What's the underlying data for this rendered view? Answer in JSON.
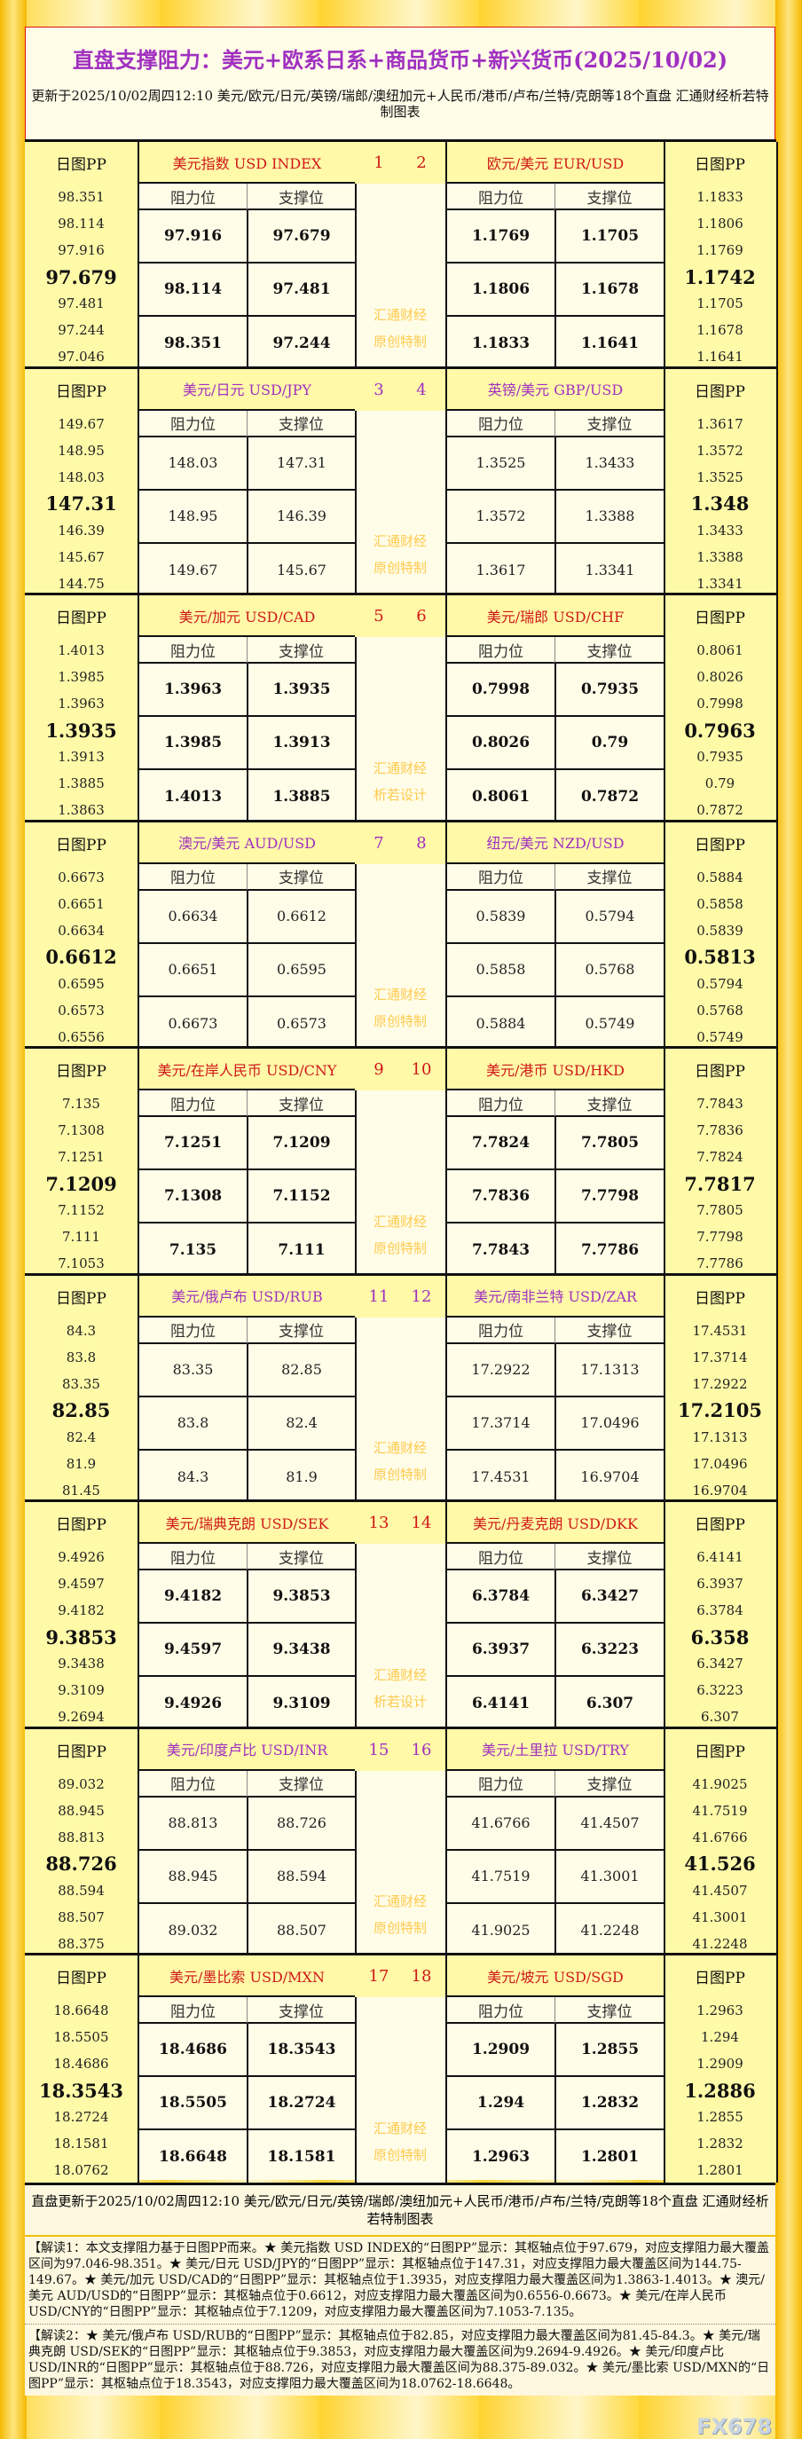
{
  "title": "直盘支撑阻力：美元+欧系日系+商品货币+新兴货币(2025/10/02)",
  "subtitle": "更新于2025/10/02周四12:10 美元/欧元/日元/英镑/瑞郎/澳纽加元+人民币/港币/卢布/兰特/克朗等18个直盘 汇通财经析若特制图表",
  "labels": {
    "pp": "日图PP",
    "resistance": "阻力位",
    "support": "支撑位"
  },
  "colors": {
    "red": "#d01818",
    "purple": "#a030c0",
    "watermark": "#ffc94d"
  },
  "blocks": [
    {
      "nums": [
        "1",
        "2"
      ],
      "color": "red",
      "bold": true,
      "watermark": [
        "汇通财经",
        "原创特制"
      ],
      "left": {
        "name": "美元指数 USD INDEX",
        "pp": [
          "98.351",
          "98.114",
          "97.916",
          "97.679",
          "97.481",
          "97.244",
          "97.046"
        ],
        "res": [
          "97.916",
          "98.114",
          "98.351"
        ],
        "sup": [
          "97.679",
          "97.481",
          "97.244"
        ]
      },
      "right": {
        "name": "欧元/美元 EUR/USD",
        "pp": [
          "1.1833",
          "1.1806",
          "1.1769",
          "1.1742",
          "1.1705",
          "1.1678",
          "1.1641"
        ],
        "res": [
          "1.1769",
          "1.1806",
          "1.1833"
        ],
        "sup": [
          "1.1705",
          "1.1678",
          "1.1641"
        ]
      }
    },
    {
      "nums": [
        "3",
        "4"
      ],
      "color": "purple",
      "bold": false,
      "watermark": [
        "汇通财经",
        "原创特制"
      ],
      "left": {
        "name": "美元/日元 USD/JPY",
        "pp": [
          "149.67",
          "148.95",
          "148.03",
          "147.31",
          "146.39",
          "145.67",
          "144.75"
        ],
        "res": [
          "148.03",
          "148.95",
          "149.67"
        ],
        "sup": [
          "147.31",
          "146.39",
          "145.67"
        ]
      },
      "right": {
        "name": "英镑/美元 GBP/USD",
        "pp": [
          "1.3617",
          "1.3572",
          "1.3525",
          "1.348",
          "1.3433",
          "1.3388",
          "1.3341"
        ],
        "res": [
          "1.3525",
          "1.3572",
          "1.3617"
        ],
        "sup": [
          "1.3433",
          "1.3388",
          "1.3341"
        ]
      }
    },
    {
      "nums": [
        "5",
        "6"
      ],
      "color": "red",
      "bold": true,
      "watermark": [
        "汇通财经",
        "析若设计"
      ],
      "left": {
        "name": "美元/加元 USD/CAD",
        "pp": [
          "1.4013",
          "1.3985",
          "1.3963",
          "1.3935",
          "1.3913",
          "1.3885",
          "1.3863"
        ],
        "res": [
          "1.3963",
          "1.3985",
          "1.4013"
        ],
        "sup": [
          "1.3935",
          "1.3913",
          "1.3885"
        ]
      },
      "right": {
        "name": "美元/瑞郎 USD/CHF",
        "pp": [
          "0.8061",
          "0.8026",
          "0.7998",
          "0.7963",
          "0.7935",
          "0.79",
          "0.7872"
        ],
        "res": [
          "0.7998",
          "0.8026",
          "0.8061"
        ],
        "sup": [
          "0.7935",
          "0.79",
          "0.7872"
        ]
      }
    },
    {
      "nums": [
        "7",
        "8"
      ],
      "color": "purple",
      "bold": false,
      "watermark": [
        "汇通财经",
        "原创特制"
      ],
      "left": {
        "name": "澳元/美元 AUD/USD",
        "pp": [
          "0.6673",
          "0.6651",
          "0.6634",
          "0.6612",
          "0.6595",
          "0.6573",
          "0.6556"
        ],
        "res": [
          "0.6634",
          "0.6651",
          "0.6673"
        ],
        "sup": [
          "0.6612",
          "0.6595",
          "0.6573"
        ]
      },
      "right": {
        "name": "纽元/美元 NZD/USD",
        "pp": [
          "0.5884",
          "0.5858",
          "0.5839",
          "0.5813",
          "0.5794",
          "0.5768",
          "0.5749"
        ],
        "res": [
          "0.5839",
          "0.5858",
          "0.5884"
        ],
        "sup": [
          "0.5794",
          "0.5768",
          "0.5749"
        ]
      }
    },
    {
      "nums": [
        "9",
        "10"
      ],
      "color": "red",
      "bold": true,
      "watermark": [
        "汇通财经",
        "原创特制"
      ],
      "left": {
        "name": "美元/在岸人民币 USD/CNY",
        "pp": [
          "7.135",
          "7.1308",
          "7.1251",
          "7.1209",
          "7.1152",
          "7.111",
          "7.1053"
        ],
        "res": [
          "7.1251",
          "7.1308",
          "7.135"
        ],
        "sup": [
          "7.1209",
          "7.1152",
          "7.111"
        ]
      },
      "right": {
        "name": "美元/港币 USD/HKD",
        "pp": [
          "7.7843",
          "7.7836",
          "7.7824",
          "7.7817",
          "7.7805",
          "7.7798",
          "7.7786"
        ],
        "res": [
          "7.7824",
          "7.7836",
          "7.7843"
        ],
        "sup": [
          "7.7805",
          "7.7798",
          "7.7786"
        ]
      }
    },
    {
      "nums": [
        "11",
        "12"
      ],
      "color": "purple",
      "bold": false,
      "watermark": [
        "汇通财经",
        "原创特制"
      ],
      "left": {
        "name": "美元/俄卢布 USD/RUB",
        "pp": [
          "84.3",
          "83.8",
          "83.35",
          "82.85",
          "82.4",
          "81.9",
          "81.45"
        ],
        "res": [
          "83.35",
          "83.8",
          "84.3"
        ],
        "sup": [
          "82.85",
          "82.4",
          "81.9"
        ]
      },
      "right": {
        "name": "美元/南非兰特 USD/ZAR",
        "pp": [
          "17.4531",
          "17.3714",
          "17.2922",
          "17.2105",
          "17.1313",
          "17.0496",
          "16.9704"
        ],
        "res": [
          "17.2922",
          "17.3714",
          "17.4531"
        ],
        "sup": [
          "17.1313",
          "17.0496",
          "16.9704"
        ]
      }
    },
    {
      "nums": [
        "13",
        "14"
      ],
      "color": "red",
      "bold": true,
      "watermark": [
        "汇通财经",
        "析若设计"
      ],
      "left": {
        "name": "美元/瑞典克朗 USD/SEK",
        "pp": [
          "9.4926",
          "9.4597",
          "9.4182",
          "9.3853",
          "9.3438",
          "9.3109",
          "9.2694"
        ],
        "res": [
          "9.4182",
          "9.4597",
          "9.4926"
        ],
        "sup": [
          "9.3853",
          "9.3438",
          "9.3109"
        ]
      },
      "right": {
        "name": "美元/丹麦克朗 USD/DKK",
        "pp": [
          "6.4141",
          "6.3937",
          "6.3784",
          "6.358",
          "6.3427",
          "6.3223",
          "6.307"
        ],
        "res": [
          "6.3784",
          "6.3937",
          "6.4141"
        ],
        "sup": [
          "6.3427",
          "6.3223",
          "6.307"
        ]
      }
    },
    {
      "nums": [
        "15",
        "16"
      ],
      "color": "purple",
      "bold": false,
      "watermark": [
        "汇通财经",
        "原创特制"
      ],
      "left": {
        "name": "美元/印度卢比 USD/INR",
        "pp": [
          "89.032",
          "88.945",
          "88.813",
          "88.726",
          "88.594",
          "88.507",
          "88.375"
        ],
        "res": [
          "88.813",
          "88.945",
          "89.032"
        ],
        "sup": [
          "88.726",
          "88.594",
          "88.507"
        ]
      },
      "right": {
        "name": "美元/土里拉 USD/TRY",
        "pp": [
          "41.9025",
          "41.7519",
          "41.6766",
          "41.526",
          "41.4507",
          "41.3001",
          "41.2248"
        ],
        "res": [
          "41.6766",
          "41.7519",
          "41.9025"
        ],
        "sup": [
          "41.4507",
          "41.3001",
          "41.2248"
        ]
      }
    },
    {
      "nums": [
        "17",
        "18"
      ],
      "color": "red",
      "bold": true,
      "watermark": [
        "汇通财经",
        "原创特制"
      ],
      "left": {
        "name": "美元/墨比索 USD/MXN",
        "pp": [
          "18.6648",
          "18.5505",
          "18.4686",
          "18.3543",
          "18.2724",
          "18.1581",
          "18.0762"
        ],
        "res": [
          "18.4686",
          "18.5505",
          "18.6648"
        ],
        "sup": [
          "18.3543",
          "18.2724",
          "18.1581"
        ]
      },
      "right": {
        "name": "美元/坡元 USD/SGD",
        "pp": [
          "1.2963",
          "1.294",
          "1.2909",
          "1.2886",
          "1.2855",
          "1.2832",
          "1.2801"
        ],
        "res": [
          "1.2909",
          "1.294",
          "1.2963"
        ],
        "sup": [
          "1.2855",
          "1.2832",
          "1.2801"
        ]
      }
    }
  ],
  "footer": {
    "update": "直盘更新于2025/10/02周四12:10 美元/欧元/日元/英镑/瑞郎/澳纽加元+人民币/港币/卢布/兰特/克朗等18个直盘 汇通财经析若特制图表",
    "note1": "【解读1：本文支撑阻力基于日图PP而来。★ 美元指数 USD INDEX的“日图PP”显示：其枢轴点位于97.679，对应支撑阻力最大覆盖区间为97.046-98.351。★ 美元/日元 USD/JPY的“日图PP”显示：其枢轴点位于147.31，对应支撑阻力最大覆盖区间为144.75-149.67。★ 美元/加元 USD/CAD的“日图PP”显示：其枢轴点位于1.3935，对应支撑阻力最大覆盖区间为1.3863-1.4013。★ 澳元/美元 AUD/USD的“日图PP”显示：其枢轴点位于0.6612，对应支撑阻力最大覆盖区间为0.6556-0.6673。★ 美元/在岸人民币 USD/CNY的“日图PP”显示：其枢轴点位于7.1209，对应支撑阻力最大覆盖区间为7.1053-7.135。",
    "note2": "【解读2：★ 美元/俄卢布 USD/RUB的“日图PP”显示：其枢轴点位于82.85，对应支撑阻力最大覆盖区间为81.45-84.3。★ 美元/瑞典克朗 USD/SEK的“日图PP”显示：其枢轴点位于9.3853，对应支撑阻力最大覆盖区间为9.2694-9.4926。★ 美元/印度卢比 USD/INR的“日图PP”显示：其枢轴点位于88.726，对应支撑阻力最大覆盖区间为88.375-89.032。★ 美元/墨比索 USD/MXN的“日图PP”显示：其枢轴点位于18.3543，对应支撑阻力最大覆盖区间为18.0762-18.6648。",
    "logo": "FX678"
  }
}
